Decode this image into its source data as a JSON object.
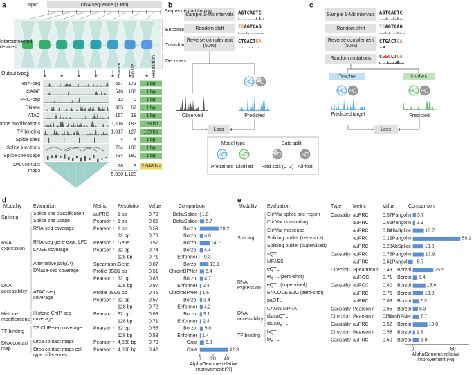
{
  "panel_a": {
    "label": "a",
    "input_label": "Input",
    "sequence_label": "DNA sequence (1 Mb)",
    "stage_labels": [
      "Sequence partitioning",
      "Encoders",
      "Transformers",
      "Decoders"
    ],
    "devices_label": "Interconnected devices",
    "output_types_label": "Output types",
    "column_headers": [
      "Human",
      "Mouse",
      "Resolution"
    ],
    "rows": [
      {
        "name": "RNA-seq",
        "human": "667",
        "mouse": "173",
        "resolution": "1 bp",
        "color": "#7fc57c"
      },
      {
        "name": "CAGE",
        "human": "546",
        "mouse": "188",
        "resolution": "1 bp",
        "color": "#7fc57c"
      },
      {
        "name": "PRO-cap",
        "human": "12",
        "mouse": "0",
        "resolution": "1 bp",
        "color": "#7fc57c"
      },
      {
        "name": "DNase",
        "human": "305",
        "mouse": "67",
        "resolution": "1 bp",
        "color": "#7fc57c"
      },
      {
        "name": "ATAC",
        "human": "167",
        "mouse": "18",
        "resolution": "1 bp",
        "color": "#7fc57c"
      },
      {
        "name": "Histone modifications",
        "human": "1,116",
        "mouse": "183",
        "resolution": "128 bp",
        "color": "#7fc57c"
      },
      {
        "name": "TF binding",
        "human": "1,617",
        "mouse": "127",
        "resolution": "128 bp",
        "color": "#7fc57c"
      },
      {
        "name": "Splice sites",
        "human": "4",
        "mouse": "4",
        "resolution": "1 bp",
        "color": "#7fc57c"
      },
      {
        "name": "Splice junctions",
        "human": "734",
        "mouse": "180",
        "resolution": "1 bp",
        "color": "#7fc57c"
      },
      {
        "name": "Splice site usage",
        "human": "734",
        "mouse": "180",
        "resolution": "1 bp",
        "color": "#7fc57c"
      },
      {
        "name": "DNA contact maps",
        "human": "28",
        "mouse": "8",
        "resolution": "2,048 bp",
        "color": "#f0d36a"
      }
    ],
    "totals": [
      "5,930",
      "1,128"
    ]
  },
  "panel_b": {
    "label": "b",
    "steps": [
      {
        "name": "Sample 1-Mb intervals",
        "sequence": [
          {
            "text": "AGTCAGTC",
            "color": "#222222"
          }
        ]
      },
      {
        "name": "Random shift",
        "sequence": [
          {
            "text": "TC",
            "color": "#e8833a"
          },
          {
            "text": "AGTCAG",
            "color": "#222222"
          }
        ]
      },
      {
        "name": "Reverse complement (50%)",
        "sequence": [
          {
            "text": "CTGACT",
            "color": "#222222"
          },
          {
            "text": "GA",
            "color": "#e8833a"
          }
        ]
      }
    ],
    "observed": "Observed",
    "predicted": "Predicted",
    "loss": "Loss",
    "legend": {
      "model_type": "Model type",
      "pretrained": "Pretrained",
      "distilled": "Distilled",
      "data_split": "Data split",
      "fold_split": "Fold split (0–3)",
      "all_fold": "All-fold"
    }
  },
  "panel_c": {
    "label": "c",
    "steps": [
      {
        "name": "Sample 1-Mb intervals",
        "sequence": [
          {
            "text": "AGTCAGTC",
            "color": "#222222"
          }
        ]
      },
      {
        "name": "Random shift",
        "sequence": [
          {
            "text": "TC",
            "color": "#e8833a"
          },
          {
            "text": "AGTCAG",
            "color": "#222222"
          }
        ]
      },
      {
        "name": "Reverse complement (50%)",
        "sequence": [
          {
            "text": "CTGACT",
            "color": "#222222"
          },
          {
            "text": "GA",
            "color": "#e8833a"
          }
        ]
      },
      {
        "name": "Random mutations",
        "sequence": [
          {
            "text": "C",
            "color": "#222222"
          },
          {
            "text": "GGC",
            "color": "#d62728"
          },
          {
            "text": "CT",
            "color": "#222222"
          },
          {
            "text": "GA",
            "color": "#e8833a"
          }
        ]
      }
    ],
    "teacher": "Teacher",
    "student": "Student",
    "predicted_target": "Predicted target",
    "predicted": "Predicted",
    "loss": "Loss"
  },
  "panel_d": {
    "label": "d",
    "headers": [
      "Modality",
      "Evaluation",
      "Metric",
      "Resolution",
      "Value",
      "Comparison"
    ],
    "bar_color": "#5b8fd4",
    "groups": [
      {
        "modality": "Splicing",
        "rows": [
          {
            "evaluation": "Splice site classification",
            "metric": "auPRC",
            "resolution": "1 bp",
            "value": "0.79",
            "comparison": "DeltaSplice",
            "improvement": 1.0,
            "improvement_label": "1.0"
          },
          {
            "evaluation": "Splice site usage",
            "metric": "Pearson r",
            "resolution": "1 bp",
            "value": "0.86",
            "comparison": "DeltaSplice",
            "improvement": 6.7
          }
        ]
      },
      {
        "modality": "RNA expression",
        "rows": [
          {
            "evaluation": "RNA-seq coverage",
            "metric": "Pearson r",
            "resolution": "1 bp",
            "value": "0.59",
            "comparison": "Borzoi",
            "improvement": 28.2
          },
          {
            "evaluation": null,
            "metric": null,
            "resolution": "32 bp",
            "value": "0.78",
            "comparison": "Borzoi",
            "improvement": 4.6
          },
          {
            "evaluation": "RNA-seq gene expr. LFC",
            "metric": "Pearson r",
            "resolution": "Gene",
            "value": "0.57",
            "comparison": "Borzoi",
            "improvement": 14.7
          },
          {
            "evaluation": "CAGE coverage",
            "metric": "Pearson r",
            "resolution": "32 bp",
            "value": "0.74",
            "comparison": "Borzoi",
            "improvement": 4.4
          },
          {
            "evaluation": null,
            "metric": null,
            "resolution": "128 bp",
            "value": "0.71",
            "comparison": "Enformer",
            "improvement": -0.3,
            "improvement_label": "−0.3"
          },
          {
            "evaluation": "Alternative poly(A)",
            "metric": "Spearman r",
            "resolution": "Gene",
            "value": "0.87",
            "comparison": "Borzoi",
            "improvement": 13.1
          }
        ]
      },
      {
        "modality": "DNA accessibility",
        "rows": [
          {
            "evaluation": "DNase-seq coverage",
            "metric": "Profile JSD",
            "resolution": "1 bp",
            "value": "0.51",
            "comparison": "ChromBPNet",
            "improvement": 6.4
          },
          {
            "evaluation": null,
            "metric": "Pearson r",
            "resolution": "32 bp",
            "value": "0.86",
            "comparison": "Borzoi",
            "improvement": 4.7
          },
          {
            "evaluation": null,
            "metric": null,
            "resolution": "128 bp",
            "value": "0.87",
            "comparison": "Enformer",
            "improvement": 2.4
          },
          {
            "evaluation": "ATAC-seq coverage",
            "metric": "Profile JSD",
            "resolution": "1 bp",
            "value": "0.46",
            "comparison": "ChromBPNet",
            "improvement": 1.6
          },
          {
            "evaluation": null,
            "metric": "Pearson r",
            "resolution": "32 bp",
            "value": "0.57",
            "comparison": "Borzoi",
            "improvement": 3.4
          },
          {
            "evaluation": null,
            "metric": null,
            "resolution": "128 bp",
            "value": "0.72",
            "comparison": "Enformer",
            "improvement": 4.2
          }
        ]
      },
      {
        "modality": "Histone modifications",
        "rows": [
          {
            "evaluation": "Histone ChIP-seq coverage",
            "metric": "Pearson r",
            "resolution": "32 bp",
            "value": "0.69",
            "comparison": "Borzoi",
            "improvement": 3.1
          },
          {
            "evaluation": null,
            "metric": null,
            "resolution": "128 bp",
            "value": "0.71",
            "comparison": "Enformer",
            "improvement": 2.4
          }
        ]
      },
      {
        "modality": "TF binding",
        "rows": [
          {
            "evaluation": "TF ChIP-seq coverage",
            "metric": "Pearson r",
            "resolution": "32 bp",
            "value": "0.55",
            "comparison": "Borzoi",
            "improvement": 5.0,
            "improvement_label": "5.0"
          },
          {
            "evaluation": null,
            "metric": null,
            "resolution": "128 bp",
            "value": "0.58",
            "comparison": "Enformer",
            "improvement": 1.4
          }
        ]
      },
      {
        "modality": "DNA contact map",
        "rows": [
          {
            "evaluation": "Orca contact maps",
            "metric": "Pearson r",
            "resolution": "4,000 bp",
            "value": "0.79",
            "comparison": "Orca",
            "improvement": 6.3
          },
          {
            "evaluation": "Orca contact maps cell type differences",
            "metric": "Pearson r",
            "resolution": "4,000 bp",
            "value": "0.42",
            "comparison": "Orca",
            "improvement": 42.3
          }
        ]
      }
    ],
    "xlim": [
      -5,
      45
    ],
    "xticks": [
      0,
      20,
      40
    ],
    "xlabel": "AlphaGenome relative improvement (%)"
  },
  "panel_e": {
    "label": "e",
    "headers": [
      "Modality",
      "Evaluation",
      "Type",
      "Metric",
      "Value",
      "Comparison"
    ],
    "bar_color": "#5b8fd4",
    "groups": [
      {
        "modality": "Splicing",
        "rows": [
          {
            "evaluation": "ClinVar splice site region",
            "type": "Causality",
            "metric": "auPRC",
            "value": "0.57",
            "comparison": "Pangolin",
            "improvement": 3.7
          },
          {
            "evaluation": "ClinVar non-coding",
            "type": null,
            "metric": "auPRC",
            "value": "0.66",
            "comparison": "Pangolin",
            "improvement": 2.9
          },
          {
            "evaluation": "ClinVar missense",
            "type": null,
            "metric": "auPRC",
            "value": "0.18",
            "comparison": "DeltaSplice",
            "improvement": 13.7
          },
          {
            "evaluation": "Splicing outlier (zero-shot)",
            "type": null,
            "metric": "auPRC",
            "value": "0.22",
            "comparison": "Pangolin",
            "improvement": 59.1
          },
          {
            "evaluation": "Splicing outlier (supervised)",
            "type": null,
            "metric": "auPRC",
            "value": "0.28",
            "comparison": "AbSplice",
            "improvement": 13.0,
            "improvement_label": "13.0"
          },
          {
            "evaluation": "sQTL",
            "type": "Causality",
            "metric": "auPRC",
            "value": "0.76",
            "comparison": "Pangolin",
            "improvement": 13.9
          },
          {
            "evaluation": "MFASS",
            "type": null,
            "metric": "auPRC",
            "value": "0.51",
            "comparison": "Pangolin",
            "improvement": -5.7,
            "improvement_label": "−5.7"
          }
        ]
      },
      {
        "modality": "RNA expression",
        "rows": [
          {
            "evaluation": "eQTL",
            "type": "Direction",
            "metric": "Spearman r",
            "value": "0.49",
            "comparison": "Borzoi",
            "improvement": 25.5
          },
          {
            "evaluation": "eQTL (zero-shot)",
            "type": null,
            "metric": "auROC",
            "value": "0.71",
            "comparison": "Borzoi",
            "improvement": 5.4
          },
          {
            "evaluation": "eQTL (supervised)",
            "type": "Causality",
            "metric": "auROC",
            "value": "0.80",
            "comparison": "Borzoi",
            "improvement": 15.6
          },
          {
            "evaluation": "ENCODE E2G (zero-shot)",
            "type": null,
            "metric": "auPRC",
            "value": "0.75",
            "comparison": "Borzoi",
            "improvement": 13.0,
            "improvement_label": "13.0"
          },
          {
            "evaluation": "paQTL",
            "type": null,
            "metric": "auPRC",
            "value": "0.63",
            "comparison": "Borzoi",
            "improvement": 7.3
          }
        ]
      },
      {
        "modality": "DNA accessibility",
        "rows": [
          {
            "evaluation": "CAGI5 MPRA",
            "type": "Causality",
            "metric": "Pearson r",
            "value": "0.65",
            "comparison": "Borzoi",
            "improvement": 6.3
          },
          {
            "evaluation": "ds/caQTL",
            "type": "Direction",
            "metric": "Pearson r",
            "value": "0.70",
            "comparison": "ChromBPNet",
            "improvement": 7.7
          },
          {
            "evaluation": "ds/caQTL",
            "type": "Causality",
            "metric": "auPRC",
            "value": "0.52",
            "comparison": "Borzoi",
            "improvement": 18.0,
            "improvement_label": "18.0"
          }
        ]
      },
      {
        "modality": "TF binding",
        "rows": [
          {
            "evaluation": "bQTL",
            "type": "Direction",
            "metric": "Pearson r",
            "value": "0.55",
            "comparison": "Borzoi",
            "improvement": 2.8
          },
          {
            "evaluation": "bQTL",
            "type": "Causality",
            "metric": "auPRC",
            "value": "0.50",
            "comparison": "Borzoi",
            "improvement": 8.0,
            "improvement_label": "8.0"
          }
        ]
      }
    ],
    "xlim": [
      -10,
      70
    ],
    "xticks": [
      0,
      50
    ],
    "xlabel": "AlphaGenome relative improvement (%)"
  }
}
